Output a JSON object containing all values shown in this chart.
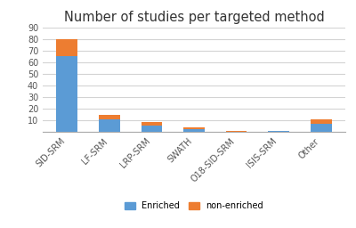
{
  "title": "Number of studies per targeted method",
  "categories": [
    "SID-SRM",
    "LF-SRM",
    "LRP-SRM",
    "SWATH",
    "O18-SID-SRM",
    "ISIS-SRM",
    "Other"
  ],
  "enriched": [
    65,
    11,
    6,
    3,
    0,
    1,
    7
  ],
  "non_enriched": [
    15,
    4,
    3,
    1,
    1,
    0,
    4
  ],
  "enriched_color": "#5B9BD5",
  "non_enriched_color": "#ED7D31",
  "background_color": "#ffffff",
  "ylim": [
    0,
    90
  ],
  "yticks": [
    0,
    10,
    20,
    30,
    40,
    50,
    60,
    70,
    80,
    90
  ],
  "grid_color": "#d3d3d3",
  "title_fontsize": 10.5,
  "tick_fontsize": 7,
  "legend_fontsize": 7
}
